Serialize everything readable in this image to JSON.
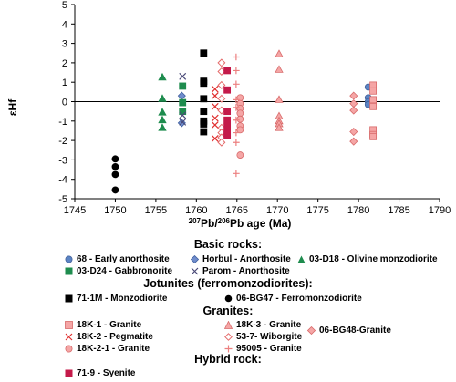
{
  "chart_data": {
    "type": "scatter",
    "xlabel_pre": "207",
    "xlabel_mid": "Pb/",
    "xlabel_sup2": "206",
    "xlabel_post": "Pb age (Ma)",
    "ylabel": "εHf",
    "xlim": [
      1745,
      1790
    ],
    "ylim": [
      -5,
      5
    ],
    "x_ticks": [
      "1745",
      "1750",
      "1755",
      "1760",
      "1765",
      "1770",
      "1775",
      "1780",
      "1785",
      "1790"
    ],
    "y_ticks": [
      "-5",
      "-4",
      "-3",
      "-2",
      "-1",
      "0",
      "1",
      "2",
      "3",
      "4",
      "5"
    ],
    "grid": false,
    "zero_line": true,
    "legend_groups": [
      {
        "title": "Basic rocks:",
        "entries": [
          "68 - Early anorthosite",
          "Horbul - Anorthosite",
          "03-D18 - Olivine monzodiorite",
          "03-D24 - Gabbronorite",
          "Parom - Anorthosite"
        ]
      },
      {
        "title": "Jotunites (ferromonzodiorites):",
        "entries": [
          "71-1M - Monzodiorite",
          "06-BG47 - Ferromonzodiorite"
        ]
      },
      {
        "title": "Granites:",
        "entries": [
          "18K-1 - Granite",
          "18K-3 - Granite",
          "06-BG48-Granite",
          "18K-2 - Pegmatite",
          "53-7- Wiborgite",
          "18K-2-1 - Granite",
          "95005 - Granite"
        ]
      },
      {
        "title": "Hybrid rock:",
        "entries": [
          "71-9 - Syenite"
        ]
      }
    ],
    "series": [
      {
        "name": "68 - Early anorthosite",
        "marker": "circle",
        "color": "#5b84c4",
        "stroke": "#41609a",
        "points": [
          [
            1781.2,
            0.75
          ],
          [
            1781.2,
            0.2
          ],
          [
            1781.2,
            0.0
          ],
          [
            1781.2,
            -0.15
          ]
        ]
      },
      {
        "name": "Horbul - Anorthosite",
        "marker": "diamond",
        "color": "#6f8ccc",
        "stroke": "#3f5f9f",
        "points": [
          [
            1758.2,
            0.3
          ],
          [
            1758.2,
            -1.1
          ]
        ]
      },
      {
        "name": "03-D18 - Olivine monzodiorite",
        "marker": "triangle",
        "color": "#1e8c4e",
        "stroke": "#1e8c4e",
        "points": [
          [
            1755.8,
            1.25
          ],
          [
            1755.8,
            0.15
          ],
          [
            1755.8,
            -0.55
          ],
          [
            1755.8,
            -0.95
          ],
          [
            1755.8,
            -1.35
          ]
        ]
      },
      {
        "name": "03-D24 - Gabbronorite",
        "marker": "square",
        "color": "#1e8c4e",
        "stroke": "#1e8c4e",
        "points": [
          [
            1758.3,
            0.8
          ],
          [
            1758.3,
            -0.05
          ],
          [
            1758.3,
            -0.5
          ]
        ]
      },
      {
        "name": "Parom - Anorthosite",
        "marker": "x",
        "color": "#4a4a78",
        "stroke": "#4a4a78",
        "points": [
          [
            1758.3,
            1.3
          ],
          [
            1758.3,
            -0.7
          ],
          [
            1758.3,
            -1.05
          ]
        ]
      },
      {
        "name": "71-1M - Monzodiorite",
        "marker": "square",
        "color": "#000000",
        "stroke": "#000000",
        "points": [
          [
            1760.9,
            2.5
          ],
          [
            1760.9,
            1.05
          ],
          [
            1760.9,
            0.95
          ],
          [
            1760.9,
            0.15
          ],
          [
            1760.9,
            -0.5
          ],
          [
            1760.9,
            -1.0
          ],
          [
            1760.9,
            -1.15
          ],
          [
            1760.9,
            -1.55
          ]
        ]
      },
      {
        "name": "06-BG47 - Ferromonzodiorite",
        "marker": "circle",
        "color": "#000000",
        "stroke": "#000000",
        "points": [
          [
            1750.0,
            -2.95
          ],
          [
            1750.0,
            -3.35
          ],
          [
            1750.0,
            -3.75
          ],
          [
            1750.0,
            -4.55
          ]
        ]
      },
      {
        "name": "18K-1 - Granite",
        "marker": "square",
        "color": "#f5a6a6",
        "stroke": "#d86a6a",
        "points": [
          [
            1781.8,
            0.85
          ],
          [
            1781.8,
            0.55
          ],
          [
            1781.8,
            0.1
          ],
          [
            1781.8,
            -0.25
          ],
          [
            1781.8,
            -1.45
          ],
          [
            1781.8,
            -1.7
          ],
          [
            1781.8,
            -1.8
          ]
        ]
      },
      {
        "name": "18K-3 - Granite",
        "marker": "triangle",
        "color": "#f5a6a6",
        "stroke": "#d86a6a",
        "points": [
          [
            1770.2,
            2.45
          ],
          [
            1770.2,
            1.65
          ],
          [
            1770.2,
            0.1
          ],
          [
            1770.2,
            -0.75
          ],
          [
            1770.2,
            -1.0
          ],
          [
            1770.2,
            -1.15
          ],
          [
            1770.2,
            -1.35
          ]
        ]
      },
      {
        "name": "06-BG48-Granite",
        "marker": "diamond",
        "color": "#f5a6a6",
        "stroke": "#d86a6a",
        "points": [
          [
            1779.4,
            0.3
          ],
          [
            1779.4,
            -0.1
          ],
          [
            1779.4,
            -0.45
          ],
          [
            1779.4,
            -1.55
          ],
          [
            1779.4,
            -2.05
          ]
        ]
      },
      {
        "name": "18K-2 - Pegmatite",
        "marker": "x",
        "color": "#e03030",
        "stroke": "#e03030",
        "points": [
          [
            1762.3,
            0.65
          ],
          [
            1762.3,
            0.3
          ],
          [
            1762.3,
            -0.25
          ],
          [
            1762.3,
            -0.85
          ],
          [
            1762.3,
            -1.2
          ],
          [
            1762.3,
            -1.9
          ]
        ]
      },
      {
        "name": "53-7- Wiborgite",
        "marker": "diamond-open",
        "color": "#ffffff",
        "stroke": "#e46a6a",
        "points": [
          [
            1763.1,
            2.0
          ],
          [
            1763.1,
            1.55
          ],
          [
            1763.1,
            0.85
          ],
          [
            1763.1,
            0.15
          ],
          [
            1763.1,
            -0.45
          ],
          [
            1763.1,
            -1.35
          ],
          [
            1763.1,
            -1.6
          ],
          [
            1763.1,
            -1.85
          ],
          [
            1763.1,
            -2.1
          ]
        ]
      },
      {
        "name": "18K-2-1 - Granite",
        "marker": "circle",
        "color": "#f5a6a6",
        "stroke": "#d86a6a",
        "points": [
          [
            1765.4,
            0.2
          ],
          [
            1765.4,
            -0.1
          ],
          [
            1765.4,
            -0.35
          ],
          [
            1765.4,
            -0.6
          ],
          [
            1765.4,
            -0.9
          ],
          [
            1765.4,
            -1.25
          ],
          [
            1765.4,
            -1.45
          ],
          [
            1765.4,
            -2.75
          ]
        ]
      },
      {
        "name": "95005 - Granite",
        "marker": "plus",
        "color": "#ec8080",
        "stroke": "#ec8080",
        "points": [
          [
            1764.9,
            2.3
          ],
          [
            1764.9,
            1.6
          ],
          [
            1764.9,
            0.9
          ],
          [
            1764.9,
            0.1
          ],
          [
            1764.9,
            -0.3
          ],
          [
            1764.9,
            -0.95
          ],
          [
            1764.9,
            -1.6
          ],
          [
            1764.9,
            -2.1
          ],
          [
            1764.9,
            -3.7
          ]
        ]
      },
      {
        "name": "71-9 - Syenite",
        "marker": "square",
        "color": "#c41a4a",
        "stroke": "#c41a4a",
        "points": [
          [
            1763.8,
            1.6
          ],
          [
            1763.8,
            0.6
          ],
          [
            1763.8,
            -0.5
          ],
          [
            1763.8,
            -0.95
          ],
          [
            1763.8,
            -1.3
          ],
          [
            1763.8,
            -1.65
          ],
          [
            1763.8,
            -1.75
          ]
        ]
      }
    ]
  }
}
